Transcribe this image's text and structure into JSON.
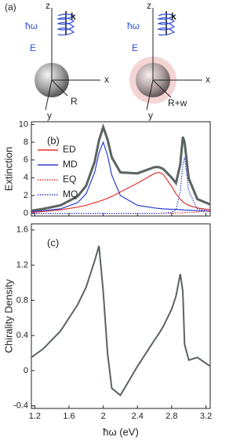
{
  "diagram": {
    "panel_label": "(a)",
    "left": {
      "z": "z",
      "hw": "ħω",
      "k": "k",
      "E": "E",
      "x": "x",
      "y": "y",
      "R": "R"
    },
    "right": {
      "z": "z",
      "hw": "ħω",
      "k": "k",
      "E": "E",
      "x": "x",
      "y": "y",
      "R": "R+w"
    }
  },
  "chart_data": [
    {
      "type": "line",
      "annotation": "(b)",
      "ylabel": "Extinction",
      "x": [
        1.16,
        1.3,
        1.5,
        1.7,
        1.8,
        1.9,
        1.95,
        2.0,
        2.05,
        2.1,
        2.2,
        2.4,
        2.6,
        2.65,
        2.7,
        2.8,
        2.85,
        2.9,
        2.93,
        2.95,
        3.0,
        3.1,
        3.25
      ],
      "xlim": [
        1.16,
        3.25
      ],
      "xticks": [
        1.2,
        1.6,
        2,
        2.4,
        2.8,
        3.2
      ],
      "ylim": [
        -0.3,
        10.3
      ],
      "yticks": [
        0,
        2,
        4,
        6,
        8,
        10
      ],
      "legend": "left",
      "series": [
        {
          "color": "#5b6361",
          "width": 3,
          "values": [
            0.3,
            0.5,
            0.9,
            1.9,
            3.1,
            5.8,
            8.2,
            9.7,
            8.3,
            6.3,
            4.6,
            4.5,
            5.2,
            5.2,
            5.0,
            4.0,
            3.4,
            5.5,
            8.6,
            8.0,
            3.9,
            1.6,
            1.0
          ]
        },
        {
          "name": "ED",
          "color": "#e3342b",
          "dash": "solid",
          "values": [
            0.1,
            0.2,
            0.4,
            0.7,
            0.9,
            1.2,
            1.35,
            1.5,
            1.7,
            1.9,
            2.4,
            3.4,
            4.5,
            4.6,
            4.4,
            3.0,
            2.2,
            1.6,
            1.3,
            1.15,
            0.9,
            0.6,
            0.4
          ]
        },
        {
          "name": "MD",
          "color": "#2a3fd0",
          "dash": "solid",
          "values": [
            0.2,
            0.3,
            0.5,
            1.2,
            2.2,
            4.6,
            6.8,
            8.0,
            6.5,
            4.3,
            2.0,
            0.9,
            0.6,
            0.55,
            0.5,
            0.45,
            0.45,
            0.4,
            0.4,
            0.38,
            0.35,
            0.3,
            0.25
          ]
        },
        {
          "name": "EQ",
          "color": "#e3342b",
          "dash": "dotted",
          "values": [
            0,
            0,
            0,
            0,
            0,
            0,
            0,
            0,
            0,
            0,
            0,
            0,
            0,
            0,
            0,
            0.02,
            0.03,
            0.05,
            0.07,
            0.08,
            0.1,
            0.15,
            0.3
          ]
        },
        {
          "name": "MQ",
          "color": "#2a3fd0",
          "dash": "dotted",
          "values": [
            0,
            0,
            0,
            0,
            0,
            0,
            0,
            0,
            0,
            0,
            0,
            0,
            0,
            0,
            0.02,
            0.1,
            0.4,
            2.5,
            5.5,
            6.3,
            2.5,
            0.5,
            0.2
          ]
        }
      ]
    },
    {
      "type": "line",
      "annotation": "(c)",
      "ylabel": "Chirality Density",
      "xlabel": "ħω (eV)",
      "x": [
        1.16,
        1.3,
        1.5,
        1.7,
        1.8,
        1.9,
        1.95,
        2.0,
        2.05,
        2.1,
        2.2,
        2.4,
        2.6,
        2.65,
        2.7,
        2.8,
        2.85,
        2.9,
        2.93,
        2.95,
        3.0,
        3.1,
        3.25
      ],
      "xlim": [
        1.16,
        3.25
      ],
      "xticks": [
        1.2,
        1.6,
        2,
        2.4,
        2.8,
        3.2
      ],
      "ylim": [
        -0.43,
        1.67
      ],
      "yticks": [
        -0.4,
        0,
        0.4,
        0.8,
        1.2,
        1.6
      ],
      "series": [
        {
          "color": "#5b6361",
          "width": 2,
          "values": [
            0.15,
            0.25,
            0.45,
            0.75,
            0.95,
            1.25,
            1.42,
            0.9,
            0.2,
            -0.2,
            -0.28,
            0.05,
            0.35,
            0.42,
            0.5,
            0.7,
            0.85,
            1.1,
            0.9,
            0.3,
            0.12,
            0.15,
            0.05
          ]
        }
      ]
    }
  ]
}
